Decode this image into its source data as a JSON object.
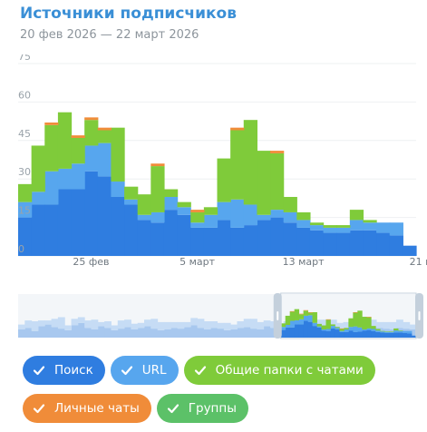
{
  "header": {
    "title": "Источники подписчиков",
    "date_range": "20 фев 2026 — 22 март 2026"
  },
  "legend": [
    {
      "label": "Поиск",
      "color": "#2f7de0",
      "checked": true
    },
    {
      "label": "URL",
      "color": "#57a6ee",
      "checked": true
    },
    {
      "label": "Общие папки с чатами",
      "color": "#7fcb3a",
      "checked": true
    },
    {
      "label": "Личные чаты",
      "color": "#f08c39",
      "checked": true
    },
    {
      "label": "Группы",
      "color": "#5cc168",
      "checked": true
    }
  ],
  "chart_data": {
    "type": "area",
    "stacked": true,
    "step": true,
    "title": "Источники подписчиков",
    "subtitle": "20 фев 2026 — 22 март 2026",
    "x_range": [
      "2026-02-20",
      "2026-03-21"
    ],
    "x": [
      "20 фев",
      "21 фев",
      "22 фев",
      "23 фев",
      "24 фев",
      "25 фев",
      "26 фев",
      "27 фев",
      "28 фев",
      "1 март",
      "2 март",
      "3 март",
      "4 март",
      "5 март",
      "6 март",
      "7 март",
      "8 март",
      "9 март",
      "10 март",
      "11 март",
      "12 март",
      "13 март",
      "14 март",
      "15 март",
      "16 март",
      "17 март",
      "18 март",
      "19 март",
      "20 март",
      "21 март"
    ],
    "x_tick_labels": [
      "25 фев",
      "5 март",
      "13 март",
      "21 м"
    ],
    "y_tick_labels": [
      "0",
      "15",
      "30",
      "45",
      "60",
      "75"
    ],
    "ylim": [
      0,
      75
    ],
    "grid": true,
    "series": [
      {
        "name": "Поиск",
        "color": "#2f7de0",
        "values": [
          15,
          20,
          20,
          26,
          26,
          33,
          31,
          23,
          20,
          14,
          13,
          18,
          16,
          11,
          11,
          14,
          11,
          12,
          14,
          15,
          13,
          11,
          10,
          9,
          9,
          10,
          10,
          9,
          8,
          4
        ]
      },
      {
        "name": "URL",
        "color": "#57a6ee",
        "values": [
          6,
          5,
          13,
          8,
          10,
          10,
          13,
          6,
          2,
          2,
          4,
          5,
          3,
          2,
          5,
          7,
          11,
          8,
          2,
          3,
          4,
          3,
          2,
          2,
          2,
          4,
          3,
          4,
          5,
          0
        ]
      },
      {
        "name": "Общие папки с чатами",
        "color": "#7fcb3a",
        "values": [
          7,
          18,
          18,
          22,
          10,
          10,
          5,
          21,
          5,
          8,
          18,
          3,
          2,
          4,
          3,
          17,
          27,
          33,
          25,
          22,
          6,
          3,
          1,
          1,
          1,
          4,
          1,
          0,
          0,
          0
        ]
      },
      {
        "name": "Личные чаты",
        "color": "#f08c39",
        "values": [
          0,
          0,
          1,
          0,
          1,
          1,
          1,
          0,
          0,
          0,
          1,
          0,
          0,
          1,
          0,
          0,
          1,
          0,
          0,
          1,
          0,
          0,
          0,
          0,
          0,
          0,
          0,
          0,
          0,
          0
        ]
      },
      {
        "name": "Группы",
        "color": "#5cc168",
        "values": [
          0,
          0,
          0,
          0,
          0,
          0,
          0,
          0,
          0,
          0,
          0,
          0,
          0,
          0,
          0,
          0,
          0,
          0,
          0,
          0,
          0,
          0,
          0,
          0,
          0,
          0,
          0,
          0,
          0,
          0
        ]
      }
    ]
  },
  "navigator": {
    "series": {
      "Поиск": [
        10,
        12,
        8,
        14,
        16,
        13,
        11,
        9,
        15,
        18,
        12,
        10,
        14,
        12,
        9,
        11,
        13,
        10,
        12,
        14,
        11,
        9,
        10,
        12,
        11,
        13,
        15,
        12,
        10,
        12,
        11,
        9,
        10,
        12,
        13,
        11,
        10,
        14,
        12,
        9,
        11,
        10,
        12,
        13,
        11,
        10,
        12,
        14,
        11,
        10,
        12,
        11,
        10,
        13,
        12,
        11,
        10,
        12,
        11,
        10
      ],
      "URL": [
        6,
        9,
        12,
        7,
        5,
        10,
        14,
        6,
        8,
        7,
        9,
        12,
        5,
        8,
        6,
        10,
        9,
        7,
        6,
        8,
        12,
        10,
        9,
        7,
        8,
        6,
        9,
        11,
        10,
        8,
        7,
        9,
        6,
        8,
        10,
        12,
        9,
        7,
        8,
        6,
        9,
        10,
        8,
        7,
        9,
        12,
        10,
        8,
        7,
        9,
        6,
        8,
        10,
        9,
        7,
        8,
        9,
        10,
        8,
        6
      ],
      "Общие папки": [
        0,
        0,
        0,
        0,
        0,
        0,
        0,
        0,
        0,
        0,
        0,
        0,
        0,
        0,
        0,
        0,
        0,
        0,
        0,
        0,
        0,
        0,
        0,
        0,
        0,
        0,
        0,
        0,
        0,
        0,
        0,
        0,
        0,
        0,
        0,
        0,
        0,
        0,
        0,
        0,
        0,
        0,
        0,
        0,
        0,
        0,
        0,
        0,
        0,
        0,
        0,
        0,
        0,
        0,
        0,
        0,
        0,
        0,
        0,
        0
      ]
    }
  }
}
